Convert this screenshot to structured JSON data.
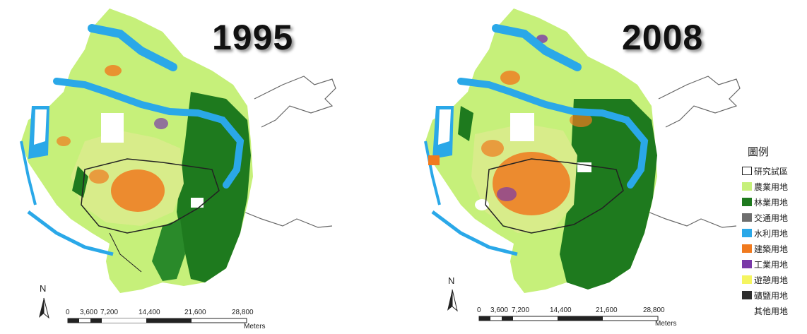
{
  "maps": [
    {
      "year": "1995",
      "scale": {
        "ticks": [
          "0",
          "3,600",
          "7,200",
          "14,400",
          "21,600",
          "28,800"
        ],
        "unit": "Meters"
      },
      "north": "N"
    },
    {
      "year": "2008",
      "scale": {
        "ticks": [
          "0",
          "3,600",
          "7,200",
          "14,400",
          "21,600",
          "28,800"
        ],
        "unit": "Meters"
      },
      "north": "N"
    }
  ],
  "legend": {
    "title": "圖例",
    "items": [
      {
        "label": "研究試區",
        "color": "#ffffff",
        "outline": "#222222"
      },
      {
        "label": "農業用地",
        "color": "#c6f07a"
      },
      {
        "label": "林業用地",
        "color": "#1e7a1e"
      },
      {
        "label": "交通用地",
        "color": "#6e6e6e"
      },
      {
        "label": "水利用地",
        "color": "#2aa8e8"
      },
      {
        "label": "建築用地",
        "color": "#f07a1e"
      },
      {
        "label": "工業用地",
        "color": "#7a3aa8"
      },
      {
        "label": "遊憩用地",
        "color": "#f5f560"
      },
      {
        "label": "礦鹽用地",
        "color": "#2e2e2e"
      },
      {
        "label": "其他用地",
        "color": ""
      }
    ]
  }
}
